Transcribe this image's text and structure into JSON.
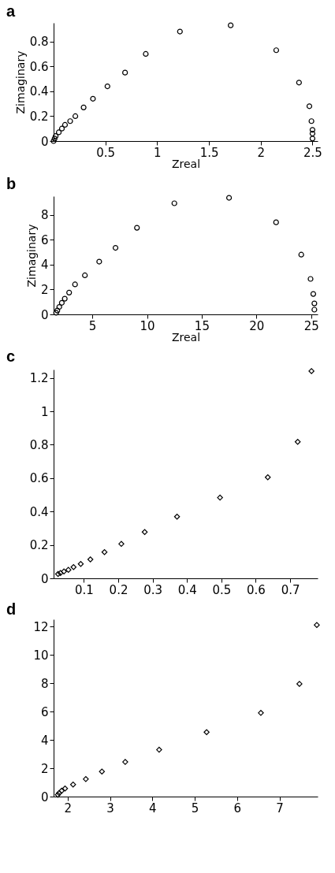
{
  "chart_data": [
    {
      "type": "scatter",
      "title": "a",
      "xlabel": "Zreal",
      "ylabel": "Zimaginary",
      "marker": "circle",
      "grid": false,
      "xlim": [
        0,
        2.55
      ],
      "ylim": [
        0,
        0.95
      ],
      "xticks": [
        0.5,
        1,
        1.5,
        2,
        2.5
      ],
      "yticks": [
        0,
        0.2,
        0.4,
        0.6,
        0.8
      ],
      "x": [
        0.0,
        0.01,
        0.02,
        0.05,
        0.08,
        0.11,
        0.16,
        0.21,
        0.29,
        0.38,
        0.52,
        0.69,
        0.89,
        1.22,
        1.71,
        2.15,
        2.37,
        2.47,
        2.49,
        2.5,
        2.5,
        2.5
      ],
      "series": [
        {
          "color": "#000000",
          "values": [
            0.0,
            0.02,
            0.04,
            0.07,
            0.1,
            0.13,
            0.16,
            0.2,
            0.27,
            0.34,
            0.44,
            0.55,
            0.7,
            0.88,
            0.93,
            0.73,
            0.47,
            0.28,
            0.16,
            0.09,
            0.06,
            0.02
          ]
        }
      ]
    },
    {
      "type": "scatter",
      "title": "b",
      "xlabel": "Zreal",
      "ylabel": "Zimaginary",
      "marker": "circle",
      "grid": false,
      "xlim": [
        1.46,
        25.6
      ],
      "ylim": [
        0,
        9.5
      ],
      "xticks": [
        5,
        10,
        15,
        20,
        25
      ],
      "yticks": [
        0,
        2,
        4,
        6,
        8
      ],
      "x": [
        1.69,
        1.8,
        1.98,
        2.21,
        2.48,
        2.88,
        3.42,
        4.32,
        5.63,
        7.12,
        9.08,
        12.5,
        17.5,
        21.8,
        24.1,
        24.95,
        25.2,
        25.3,
        25.3
      ],
      "series": [
        {
          "color": "#000000",
          "values": [
            0.13,
            0.31,
            0.6,
            0.93,
            1.26,
            1.75,
            2.41,
            3.14,
            4.24,
            5.35,
            6.96,
            8.93,
            9.37,
            7.4,
            4.8,
            2.85,
            1.64,
            0.88,
            0.38
          ]
        }
      ]
    },
    {
      "type": "scatter",
      "title": "c",
      "marker": "diamond",
      "grid": false,
      "xlim": [
        0.012,
        0.78
      ],
      "ylim": [
        0,
        1.25
      ],
      "xticks": [
        0.1,
        0.2,
        0.3,
        0.4,
        0.5,
        0.6,
        0.7
      ],
      "yticks": [
        0,
        0.2,
        0.4,
        0.6,
        0.8,
        1,
        1.2
      ],
      "x": [
        0.025,
        0.032,
        0.042,
        0.055,
        0.07,
        0.091,
        0.119,
        0.16,
        0.209,
        0.277,
        0.371,
        0.496,
        0.635,
        0.722,
        0.762
      ],
      "series": [
        {
          "color": "#000000",
          "values": [
            0.026,
            0.032,
            0.041,
            0.051,
            0.067,
            0.086,
            0.113,
            0.157,
            0.206,
            0.277,
            0.369,
            0.483,
            0.605,
            0.817,
            1.241
          ]
        }
      ]
    },
    {
      "type": "scatter",
      "title": "d",
      "marker": "diamond",
      "grid": false,
      "xlim": [
        1.67,
        7.9
      ],
      "ylim": [
        0,
        12.5
      ],
      "xticks": [
        2,
        3,
        4,
        5,
        6,
        7
      ],
      "yticks": [
        0,
        2,
        4,
        6,
        8,
        10,
        12
      ],
      "x": [
        1.77,
        1.8,
        1.86,
        1.94,
        2.13,
        2.43,
        2.81,
        3.36,
        4.16,
        5.28,
        6.56,
        7.47,
        7.88
      ],
      "series": [
        {
          "color": "#000000",
          "values": [
            0.13,
            0.25,
            0.41,
            0.57,
            0.85,
            1.23,
            1.77,
            2.44,
            3.3,
            4.54,
            5.9,
            7.95,
            12.1
          ]
        }
      ]
    }
  ]
}
